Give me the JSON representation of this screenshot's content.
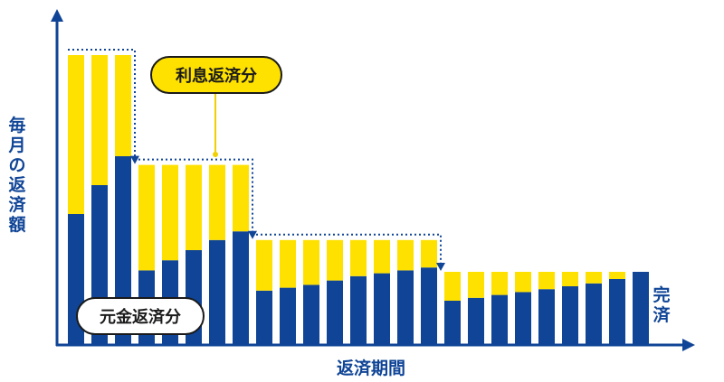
{
  "chart_data": {
    "type": "bar",
    "stacked": true,
    "title": "",
    "xlabel": "返済期間",
    "ylabel": "毎月の返済額",
    "end_label": "完済",
    "series": [
      {
        "name": "元金返済分",
        "color": "#0f4496",
        "values": [
          0.45,
          0.55,
          0.65,
          0.255,
          0.29,
          0.325,
          0.36,
          0.39,
          0.185,
          0.195,
          0.205,
          0.22,
          0.235,
          0.245,
          0.255,
          0.265,
          0.15,
          0.16,
          0.17,
          0.18,
          0.19,
          0.2,
          0.21,
          0.225,
          0.25
        ]
      },
      {
        "name": "利息返済分",
        "color": "#ffe100",
        "values": [
          0.55,
          0.45,
          0.35,
          0.365,
          0.33,
          0.295,
          0.26,
          0.23,
          0.175,
          0.165,
          0.155,
          0.14,
          0.125,
          0.115,
          0.105,
          0.095,
          0.1,
          0.09,
          0.08,
          0.07,
          0.06,
          0.05,
          0.04,
          0.025,
          0
        ]
      }
    ],
    "groups": [
      [
        0,
        2
      ],
      [
        3,
        7
      ],
      [
        8,
        15
      ],
      [
        16,
        23
      ]
    ],
    "ylim": [
      0,
      1.0
    ],
    "axis_color": "#0f4496",
    "grid": false,
    "legend": "callout-labels"
  }
}
